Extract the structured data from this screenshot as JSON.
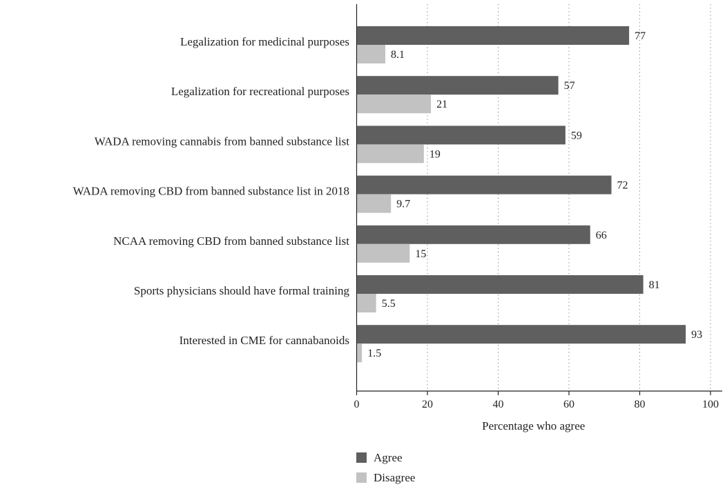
{
  "chart_data": {
    "type": "bar",
    "orientation": "horizontal",
    "categories": [
      "Legalization for medicinal purposes",
      "Legalization for recreational purposes",
      "WADA removing cannabis from banned substance list",
      "WADA removing CBD from banned substance list in 2018",
      "NCAA removing CBD from banned substance list",
      "Sports physicians should have formal training",
      "Interested in CME for cannabanoids"
    ],
    "series": [
      {
        "name": "Agree",
        "color": "#5f5f5f",
        "values": [
          77,
          57,
          59,
          72,
          66,
          81,
          93
        ],
        "labels": [
          "77",
          "57",
          "59",
          "72",
          "66",
          "81",
          "93"
        ]
      },
      {
        "name": "Disagree",
        "color": "#c2c2c2",
        "values": [
          8.1,
          21,
          19,
          9.7,
          15,
          5.5,
          1.5
        ],
        "labels": [
          "8.1",
          "21",
          "19",
          "9.7",
          "15",
          "5.5",
          "1.5"
        ]
      }
    ],
    "xlabel": "Percentage who agree",
    "xlim": [
      0,
      100
    ],
    "xticks": [
      0,
      20,
      40,
      60,
      80,
      100
    ],
    "xtick_labels": [
      "0",
      "20",
      "40",
      "60",
      "80",
      "100"
    ],
    "grid": "vertical dotted",
    "legend": "bottom"
  }
}
